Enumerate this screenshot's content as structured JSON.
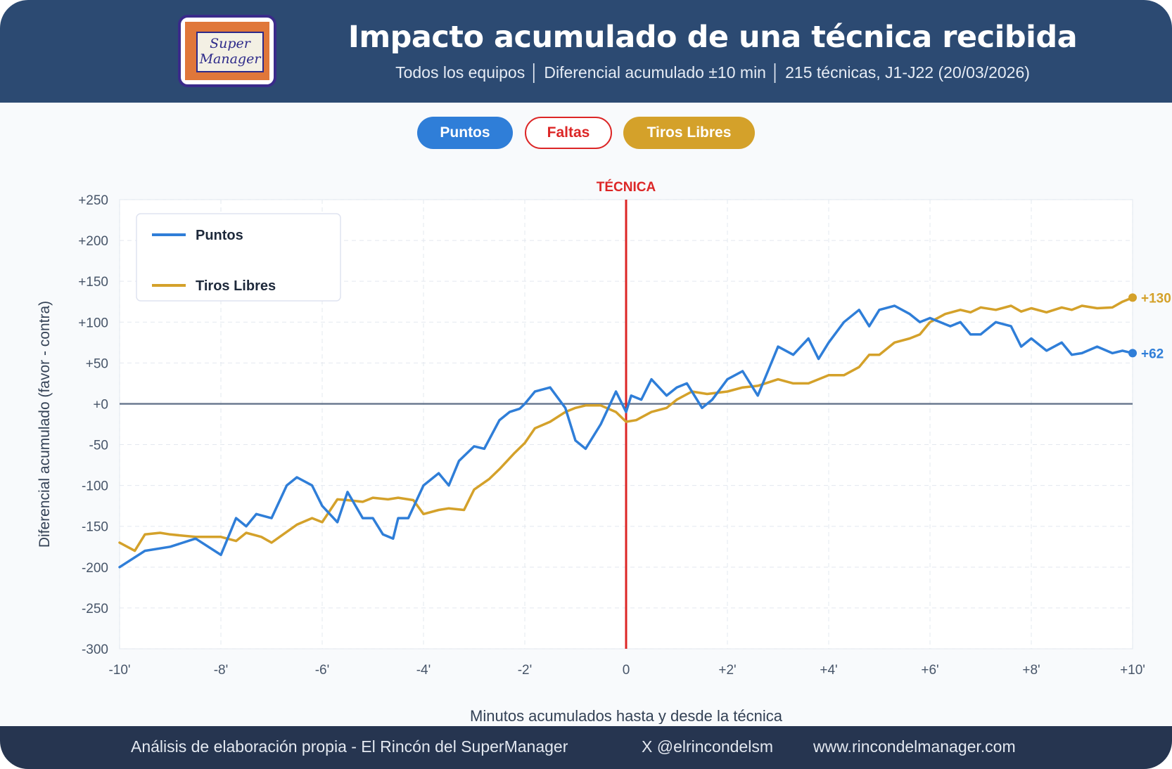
{
  "header": {
    "logo_text_line1": "Super",
    "logo_text_line2": "Manager",
    "title": "Impacto acumulado de una técnica recibida",
    "subtitle": "Todos los equipos │ Diferencial acumulado ±10 min │ 215 técnicas, J1-J22 (20/03/2026)"
  },
  "toggles": [
    {
      "label": "Puntos",
      "active": true,
      "color": "#2f7ed8"
    },
    {
      "label": "Faltas",
      "active": false,
      "color": "#dc2626"
    },
    {
      "label": "Tiros Libres",
      "active": true,
      "color": "#d4a12a"
    }
  ],
  "footer": {
    "credit": "Análisis de elaboración propia - El Rincón del SuperManager",
    "social": "X @elrincondelsm",
    "website": "www.rincondelmanager.com"
  },
  "chart_data": {
    "type": "line",
    "xlabel": "Minutos acumulados hasta y desde la técnica",
    "ylabel": "Diferencial acumulado (favor - contra)",
    "xlim": [
      -10,
      10
    ],
    "ylim": [
      -300,
      250
    ],
    "x_ticks": [
      -10,
      -8,
      -6,
      -4,
      -2,
      0,
      2,
      4,
      6,
      8,
      10
    ],
    "x_tick_labels": [
      "-10'",
      "-8'",
      "-6'",
      "-4'",
      "-2'",
      "0",
      "+2'",
      "+4'",
      "+6'",
      "+8'",
      "+10'"
    ],
    "y_ticks": [
      250,
      200,
      150,
      100,
      50,
      0,
      -50,
      -100,
      -150,
      -200,
      -250,
      -300
    ],
    "y_tick_labels": [
      "+250",
      "+200",
      "+150",
      "+100",
      "+50",
      "+0",
      "-50",
      "-100",
      "-150",
      "-200",
      "-250",
      "-300"
    ],
    "grid": true,
    "legend_position": "top-left",
    "annotation": {
      "x": 0,
      "label": "TÉCNICA",
      "color": "#dc2626"
    },
    "series": [
      {
        "name": "Puntos",
        "color": "#2f7ed8",
        "end_label": "+62",
        "x": [
          -10,
          -9.5,
          -9,
          -8.5,
          -8,
          -7.7,
          -7.5,
          -7.3,
          -7,
          -6.7,
          -6.5,
          -6.2,
          -6,
          -5.7,
          -5.5,
          -5.2,
          -5,
          -4.8,
          -4.6,
          -4.5,
          -4.3,
          -4,
          -3.7,
          -3.5,
          -3.3,
          -3,
          -2.8,
          -2.5,
          -2.3,
          -2.1,
          -2,
          -1.8,
          -1.5,
          -1.2,
          -1,
          -0.8,
          -0.5,
          -0.2,
          0,
          0.1,
          0.3,
          0.5,
          0.8,
          1,
          1.2,
          1.5,
          1.7,
          2,
          2.3,
          2.6,
          2.8,
          3,
          3.3,
          3.6,
          3.8,
          4,
          4.3,
          4.6,
          4.8,
          5,
          5.3,
          5.6,
          5.8,
          6,
          6.2,
          6.4,
          6.6,
          6.8,
          7,
          7.3,
          7.6,
          7.8,
          8,
          8.3,
          8.6,
          8.8,
          9,
          9.3,
          9.6,
          9.8,
          10
        ],
        "y": [
          -200,
          -180,
          -175,
          -165,
          -185,
          -140,
          -150,
          -135,
          -140,
          -100,
          -90,
          -100,
          -125,
          -145,
          -108,
          -140,
          -140,
          -160,
          -165,
          -140,
          -140,
          -100,
          -85,
          -100,
          -70,
          -52,
          -55,
          -20,
          -10,
          -6,
          0,
          15,
          20,
          -5,
          -45,
          -55,
          -25,
          15,
          -10,
          10,
          5,
          30,
          10,
          20,
          25,
          -5,
          5,
          30,
          40,
          10,
          40,
          70,
          60,
          80,
          55,
          75,
          100,
          115,
          95,
          115,
          120,
          110,
          100,
          105,
          100,
          95,
          100,
          85,
          85,
          100,
          95,
          70,
          80,
          65,
          75,
          60,
          62,
          70,
          62,
          65,
          62
        ]
      },
      {
        "name": "Tiros Libres",
        "color": "#d4a12a",
        "end_label": "+130",
        "x": [
          -10,
          -9.7,
          -9.5,
          -9.2,
          -9,
          -8.5,
          -8,
          -7.7,
          -7.5,
          -7.2,
          -7,
          -6.5,
          -6.2,
          -6,
          -5.7,
          -5.5,
          -5.2,
          -5,
          -4.7,
          -4.5,
          -4.2,
          -4,
          -3.7,
          -3.5,
          -3.2,
          -3,
          -2.7,
          -2.5,
          -2.2,
          -2,
          -1.8,
          -1.5,
          -1.2,
          -1,
          -0.8,
          -0.5,
          -0.2,
          0,
          0.2,
          0.5,
          0.8,
          1,
          1.3,
          1.6,
          2,
          2.3,
          2.6,
          3,
          3.3,
          3.6,
          4,
          4.3,
          4.6,
          4.8,
          5,
          5.3,
          5.6,
          5.8,
          6,
          6.3,
          6.6,
          6.8,
          7,
          7.3,
          7.6,
          7.8,
          8,
          8.3,
          8.6,
          8.8,
          9,
          9.3,
          9.6,
          9.8,
          10
        ],
        "y": [
          -170,
          -180,
          -160,
          -158,
          -160,
          -163,
          -163,
          -168,
          -158,
          -163,
          -170,
          -148,
          -140,
          -145,
          -117,
          -118,
          -120,
          -115,
          -117,
          -115,
          -118,
          -135,
          -130,
          -128,
          -130,
          -105,
          -92,
          -80,
          -60,
          -48,
          -30,
          -22,
          -10,
          -5,
          -2,
          -2,
          -10,
          -22,
          -20,
          -10,
          -5,
          5,
          15,
          12,
          15,
          20,
          22,
          30,
          25,
          25,
          35,
          35,
          45,
          60,
          60,
          75,
          80,
          85,
          100,
          110,
          115,
          112,
          118,
          115,
          120,
          113,
          117,
          112,
          118,
          115,
          120,
          117,
          118,
          125,
          130
        ]
      }
    ]
  }
}
